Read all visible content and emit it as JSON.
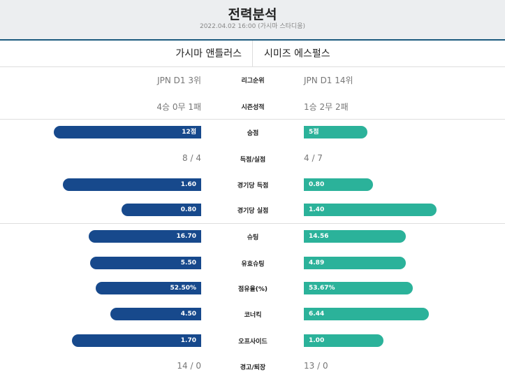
{
  "header": {
    "title": "전력분석",
    "subtitle": "2022.04.02 16:00 (가시마 스타디움)"
  },
  "teams": {
    "home": "가시마 앤틀러스",
    "away": "시미즈 에스펄스"
  },
  "colors": {
    "home": "#17498c",
    "away": "#2bb29a",
    "header_line": "#1c5a7e"
  },
  "text_rows": [
    {
      "label": "리그순위",
      "home": "JPN D1 3위",
      "away": "JPN D1 14위"
    },
    {
      "label": "시즌성적",
      "home": "4승 0무 1패",
      "away": "1승 2무 2패"
    }
  ],
  "stat_rows": [
    {
      "type": "bar",
      "label": "승점",
      "home": "12점",
      "away": "5점",
      "home_fill": 0.81,
      "away_fill": 0.35
    },
    {
      "type": "text",
      "label": "득점/실점",
      "home": "8 / 4",
      "away": "4 / 7"
    },
    {
      "type": "bar",
      "label": "경기당 득점",
      "home": "1.60",
      "away": "0.80",
      "home_fill": 0.76,
      "away_fill": 0.38
    },
    {
      "type": "bar",
      "label": "경기당 실점",
      "home": "0.80",
      "away": "1.40",
      "home_fill": 0.44,
      "away_fill": 0.73
    }
  ],
  "match_rows": [
    {
      "type": "bar",
      "label": "슈팅",
      "home": "16.70",
      "away": "14.56",
      "home_fill": 0.62,
      "away_fill": 0.56
    },
    {
      "type": "bar",
      "label": "유효슈팅",
      "home": "5.50",
      "away": "4.89",
      "home_fill": 0.61,
      "away_fill": 0.56
    },
    {
      "type": "bar",
      "label": "점유율(%)",
      "home": "52.50%",
      "away": "53.67%",
      "home_fill": 0.58,
      "away_fill": 0.6
    },
    {
      "type": "bar",
      "label": "코너킥",
      "home": "4.50",
      "away": "6.44",
      "home_fill": 0.5,
      "away_fill": 0.69
    },
    {
      "type": "bar",
      "label": "오프사이드",
      "home": "1.70",
      "away": "1.00",
      "home_fill": 0.71,
      "away_fill": 0.44
    },
    {
      "type": "text",
      "label": "경고/퇴장",
      "home": "14 / 0",
      "away": "13 / 0"
    }
  ]
}
